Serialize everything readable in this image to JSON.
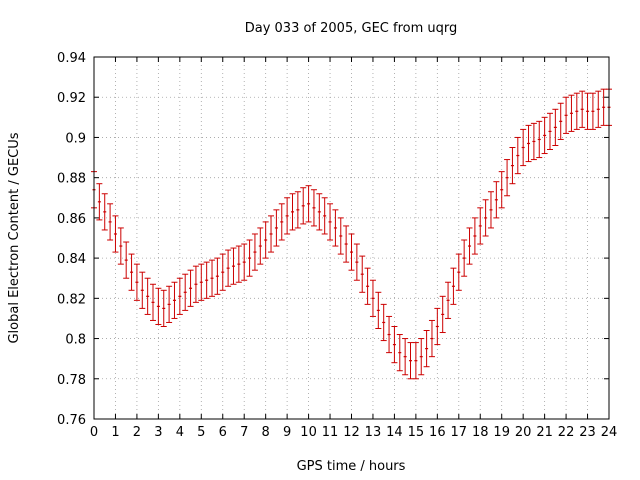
{
  "chart_data": {
    "type": "scatter",
    "title": "Day 033 of 2005, GEC from uqrg",
    "xlabel": "GPS time / hours",
    "ylabel": "Global Electron Content / GECUs",
    "xlim": [
      0,
      24
    ],
    "ylim": [
      0.76,
      0.94
    ],
    "grid": true,
    "x_ticks": [
      "0",
      "1",
      "2",
      "3",
      "4",
      "5",
      "6",
      "7",
      "8",
      "9",
      "10",
      "11",
      "12",
      "13",
      "14",
      "15",
      "16",
      "17",
      "18",
      "19",
      "20",
      "21",
      "22",
      "23",
      "24"
    ],
    "y_ticks": [
      "0.76",
      "0.78",
      "0.8",
      "0.82",
      "0.84",
      "0.86",
      "0.88",
      "0.9",
      "0.92",
      "0.94"
    ],
    "error": 0.009,
    "series": [
      {
        "color": "#cc0000",
        "x": [
          0,
          0.25,
          0.5,
          0.75,
          1,
          1.25,
          1.5,
          1.75,
          2,
          2.25,
          2.5,
          2.75,
          3,
          3.25,
          3.5,
          3.75,
          4,
          4.25,
          4.5,
          4.75,
          5,
          5.25,
          5.5,
          5.75,
          6,
          6.25,
          6.5,
          6.75,
          7,
          7.25,
          7.5,
          7.75,
          8,
          8.25,
          8.5,
          8.75,
          9,
          9.25,
          9.5,
          9.75,
          10,
          10.25,
          10.5,
          10.75,
          11,
          11.25,
          11.5,
          11.75,
          12,
          12.25,
          12.5,
          12.75,
          13,
          13.25,
          13.5,
          13.75,
          14,
          14.25,
          14.5,
          14.75,
          15,
          15.25,
          15.5,
          15.75,
          16,
          16.25,
          16.5,
          16.75,
          17,
          17.25,
          17.5,
          17.75,
          18,
          18.25,
          18.5,
          18.75,
          19,
          19.25,
          19.5,
          19.75,
          20,
          20.25,
          20.5,
          20.75,
          21,
          21.25,
          21.5,
          21.75,
          22,
          22.25,
          22.5,
          22.75,
          23,
          23.25,
          23.5,
          23.75,
          24
        ],
        "y": [
          0.874,
          0.868,
          0.863,
          0.858,
          0.852,
          0.846,
          0.839,
          0.833,
          0.828,
          0.824,
          0.821,
          0.818,
          0.816,
          0.815,
          0.817,
          0.819,
          0.821,
          0.823,
          0.825,
          0.827,
          0.828,
          0.829,
          0.83,
          0.831,
          0.833,
          0.835,
          0.836,
          0.837,
          0.838,
          0.84,
          0.843,
          0.846,
          0.849,
          0.852,
          0.855,
          0.858,
          0.861,
          0.863,
          0.864,
          0.866,
          0.867,
          0.865,
          0.863,
          0.861,
          0.858,
          0.855,
          0.851,
          0.847,
          0.843,
          0.838,
          0.832,
          0.826,
          0.82,
          0.814,
          0.808,
          0.802,
          0.797,
          0.793,
          0.791,
          0.789,
          0.789,
          0.791,
          0.795,
          0.8,
          0.806,
          0.812,
          0.819,
          0.826,
          0.833,
          0.84,
          0.846,
          0.851,
          0.856,
          0.86,
          0.864,
          0.869,
          0.874,
          0.88,
          0.886,
          0.891,
          0.895,
          0.897,
          0.898,
          0.899,
          0.901,
          0.903,
          0.905,
          0.908,
          0.911,
          0.912,
          0.913,
          0.914,
          0.913,
          0.913,
          0.914,
          0.915,
          0.915
        ]
      }
    ]
  }
}
